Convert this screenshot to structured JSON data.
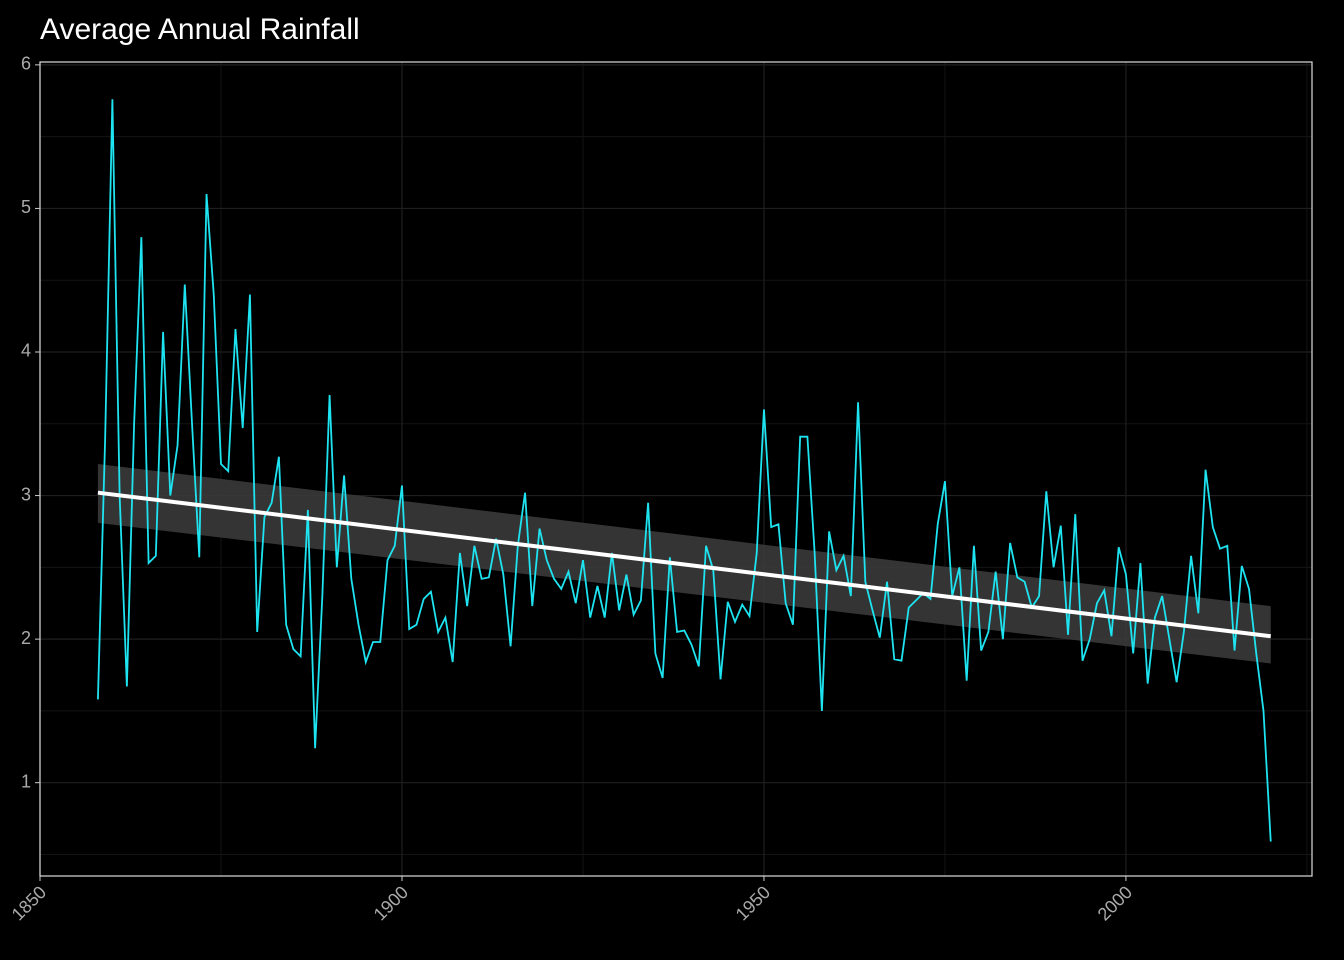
{
  "chart_data": {
    "type": "line",
    "title": "Average Annual Rainfall",
    "x": [
      1858,
      1859,
      1860,
      1861,
      1862,
      1863,
      1864,
      1865,
      1866,
      1867,
      1868,
      1869,
      1870,
      1871,
      1872,
      1873,
      1874,
      1875,
      1876,
      1877,
      1878,
      1879,
      1880,
      1881,
      1882,
      1883,
      1884,
      1885,
      1886,
      1887,
      1888,
      1889,
      1890,
      1891,
      1892,
      1893,
      1894,
      1895,
      1896,
      1897,
      1898,
      1899,
      1900,
      1901,
      1902,
      1903,
      1904,
      1905,
      1906,
      1907,
      1908,
      1909,
      1910,
      1911,
      1912,
      1913,
      1914,
      1915,
      1916,
      1917,
      1918,
      1919,
      1920,
      1921,
      1922,
      1923,
      1924,
      1925,
      1926,
      1927,
      1928,
      1929,
      1930,
      1931,
      1932,
      1933,
      1934,
      1935,
      1936,
      1937,
      1938,
      1939,
      1940,
      1941,
      1942,
      1943,
      1944,
      1945,
      1946,
      1947,
      1948,
      1949,
      1950,
      1951,
      1952,
      1953,
      1954,
      1955,
      1956,
      1957,
      1958,
      1959,
      1960,
      1961,
      1962,
      1963,
      1964,
      1965,
      1966,
      1967,
      1968,
      1969,
      1970,
      1971,
      1972,
      1973,
      1974,
      1975,
      1976,
      1977,
      1978,
      1979,
      1980,
      1981,
      1982,
      1983,
      1984,
      1985,
      1986,
      1987,
      1988,
      1989,
      1990,
      1991,
      1992,
      1993,
      1994,
      1995,
      1996,
      1997,
      1998,
      1999,
      2000,
      2001,
      2002,
      2003,
      2004,
      2005,
      2006,
      2007,
      2008,
      2009,
      2010,
      2011,
      2012,
      2013,
      2014,
      2015,
      2016,
      2017,
      2018,
      2019,
      2020
    ],
    "values": [
      1.58,
      3.4,
      5.76,
      3.0,
      1.67,
      3.5,
      4.8,
      2.53,
      2.58,
      4.14,
      3.0,
      3.35,
      4.47,
      3.5,
      2.57,
      5.1,
      4.4,
      3.22,
      3.17,
      4.16,
      3.47,
      4.4,
      2.05,
      2.85,
      2.95,
      3.27,
      2.1,
      1.93,
      1.88,
      2.9,
      1.24,
      2.3,
      3.7,
      2.5,
      3.14,
      2.42,
      2.1,
      1.84,
      1.98,
      1.98,
      2.55,
      2.65,
      3.07,
      2.07,
      2.1,
      2.28,
      2.33,
      2.05,
      2.15,
      1.84,
      2.6,
      2.23,
      2.65,
      2.42,
      2.43,
      2.7,
      2.45,
      1.95,
      2.65,
      3.02,
      2.23,
      2.77,
      2.55,
      2.42,
      2.35,
      2.47,
      2.25,
      2.55,
      2.15,
      2.37,
      2.15,
      2.6,
      2.2,
      2.45,
      2.17,
      2.27,
      2.95,
      1.9,
      1.73,
      2.57,
      2.05,
      2.06,
      1.96,
      1.81,
      2.65,
      2.48,
      1.72,
      2.26,
      2.12,
      2.24,
      2.16,
      2.6,
      3.6,
      2.78,
      2.8,
      2.25,
      2.1,
      3.41,
      3.41,
      2.6,
      1.5,
      2.75,
      2.48,
      2.58,
      2.3,
      3.65,
      2.4,
      2.2,
      2.01,
      2.4,
      1.86,
      1.85,
      2.22,
      2.27,
      2.32,
      2.28,
      2.8,
      3.1,
      2.3,
      2.5,
      1.71,
      2.65,
      1.92,
      2.05,
      2.47,
      2.0,
      2.67,
      2.43,
      2.4,
      2.22,
      2.3,
      3.03,
      2.5,
      2.79,
      2.03,
      2.87,
      1.85,
      2.0,
      2.25,
      2.34,
      2.02,
      2.64,
      2.45,
      1.9,
      2.53,
      1.69,
      2.15,
      2.3,
      2.0,
      1.7,
      2.05,
      2.58,
      2.18,
      3.18,
      2.78,
      2.63,
      2.65,
      1.92,
      2.51,
      2.35,
      1.9,
      1.5,
      0.59
    ],
    "color": "#1ee3f0",
    "trend": {
      "x": [
        1858,
        2020
      ],
      "values": [
        3.02,
        2.02
      ],
      "upper": [
        3.22,
        2.23
      ],
      "lower": [
        2.81,
        1.83
      ],
      "color": "#ffffff",
      "band_color": "#3a3a3a"
    },
    "xlim": [
      1850,
      2025.7
    ],
    "ylim": [
      0.35,
      6.02
    ],
    "xticks": [
      1850,
      1900,
      1950,
      2000
    ],
    "yticks": [
      1,
      2,
      3,
      4,
      5,
      6
    ],
    "grid": true
  }
}
